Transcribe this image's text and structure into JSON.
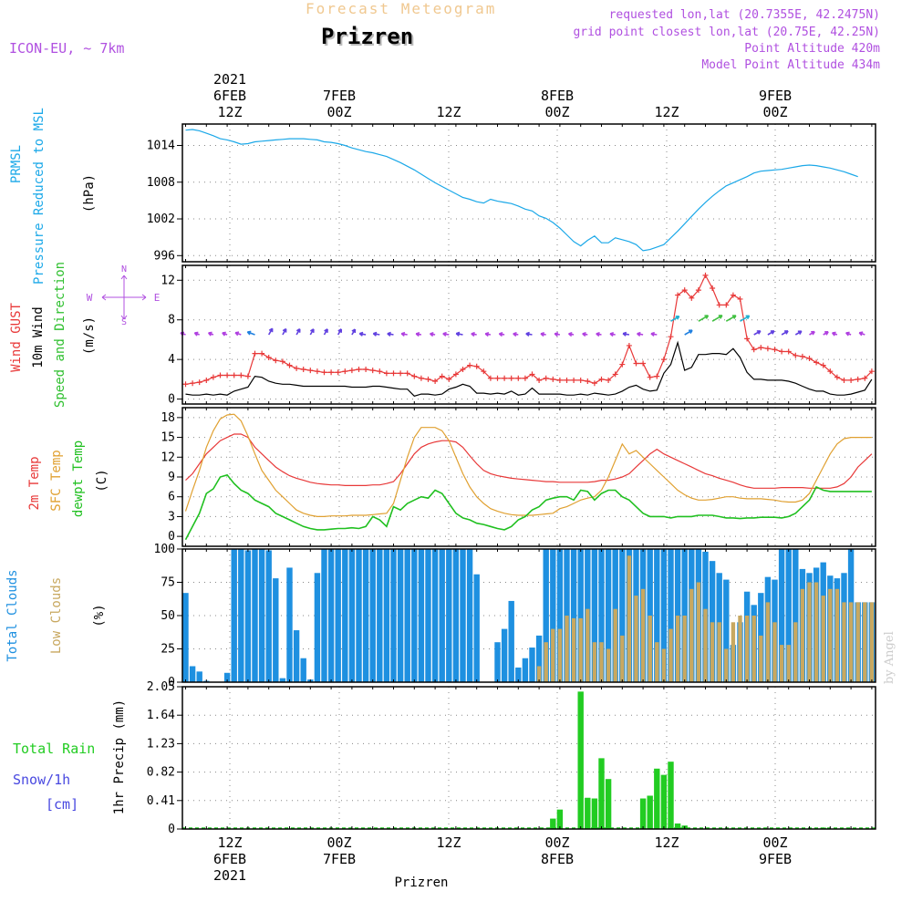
{
  "header": {
    "title": "Forecast Meteogram",
    "city": "Prizren",
    "model": "ICON-EU, ~ 7km",
    "requested": "requested lon,lat (20.7355E, 42.2475N)",
    "grid_point": "grid point closest lon,lat (20.75E, 42.25N)",
    "point_altitude": "Point Altitude 420m",
    "model_altitude": "Model Point Altitude 434m",
    "footer": "Prizren",
    "watermark": "by Angel"
  },
  "colors": {
    "pressure": "#1ba8e8",
    "gust": "#e83838",
    "wind": "#000000",
    "dir": "#30c030",
    "temp": "#e83838",
    "sfc": "#e0a030",
    "dewpt": "#20c020",
    "total_clouds": "#1e90e0",
    "low_clouds": "#c8a860",
    "rain": "#22cc22",
    "snow": "#4848e0",
    "purple": "#b050e0"
  },
  "chart_data": [
    {
      "type": "line",
      "name": "pressure",
      "title": "PRMSL Pressure Reduced to MSL",
      "ylabel": "(hPa)",
      "ylabel_lines": [
        "PRMSL",
        "Pressure Reduced to MSL"
      ],
      "yunit": "(hPa)",
      "ylim": [
        995,
        1017.5
      ],
      "yticks": [
        996,
        1002,
        1008,
        1014
      ],
      "series": [
        {
          "name": "PRMSL",
          "values": [
            1016.5,
            1016.6,
            1016.4,
            1016.0,
            1015.6,
            1015.1,
            1014.9,
            1014.6,
            1014.2,
            1014.3,
            1014.6,
            1014.7,
            1014.8,
            1014.9,
            1015.0,
            1015.1,
            1015.1,
            1015.1,
            1015.0,
            1014.9,
            1014.6,
            1014.5,
            1014.3,
            1014.0,
            1013.6,
            1013.3,
            1013.0,
            1012.8,
            1012.5,
            1012.2,
            1011.7,
            1011.2,
            1010.6,
            1010.0,
            1009.3,
            1008.6,
            1007.9,
            1007.3,
            1006.7,
            1006.1,
            1005.5,
            1005.2,
            1004.8,
            1004.6,
            1005.2,
            1004.9,
            1004.7,
            1004.5,
            1004.1,
            1003.6,
            1003.3,
            1002.5,
            1002.1,
            1001.4,
            1000.5,
            999.4,
            998.3,
            997.6,
            998.5,
            999.2,
            998.1,
            998.1,
            998.9,
            998.6,
            998.3,
            997.8,
            996.8,
            997.0,
            997.4,
            997.8,
            998.9,
            1000.0,
            1001.2,
            1002.4,
            1003.6,
            1004.7,
            1005.7,
            1006.6,
            1007.4,
            1007.9,
            1008.4,
            1008.9,
            1009.5,
            1009.8,
            1009.9,
            1010.0,
            1010.1,
            1010.3,
            1010.5,
            1010.7,
            1010.8,
            1010.7,
            1010.5,
            1010.3,
            1010.0,
            1009.7,
            1009.3,
            1008.9
          ]
        }
      ]
    },
    {
      "type": "line",
      "name": "wind",
      "title": "Wind GUST 10m Wind Speed and Direction",
      "ylabel": "(m/s)",
      "ylabel_lines": [
        "Wind GUST",
        "10m Wind",
        "Speed and Direction"
      ],
      "yunit": "(m/s)",
      "compass": {
        "n": "N",
        "s": "S",
        "e": "E",
        "w": "W"
      },
      "ylim": [
        -0.5,
        13.5
      ],
      "yticks": [
        0,
        4,
        8,
        12
      ],
      "series": [
        {
          "name": "Wind GUST",
          "values": [
            1.5,
            1.6,
            1.7,
            1.9,
            2.2,
            2.4,
            2.4,
            2.4,
            2.4,
            2.3,
            4.6,
            4.6,
            4.2,
            3.9,
            3.8,
            3.4,
            3.1,
            3.0,
            2.9,
            2.8,
            2.7,
            2.7,
            2.7,
            2.8,
            2.9,
            3.0,
            3.0,
            2.9,
            2.8,
            2.6,
            2.6,
            2.6,
            2.6,
            2.3,
            2.1,
            2.0,
            1.8,
            2.3,
            2.0,
            2.5,
            3.0,
            3.4,
            3.3,
            2.8,
            2.1,
            2.1,
            2.1,
            2.1,
            2.1,
            2.1,
            2.5,
            1.9,
            2.1,
            2.0,
            1.9,
            1.9,
            1.9,
            1.9,
            1.8,
            1.6,
            2.0,
            1.9,
            2.5,
            3.5,
            5.4,
            3.6,
            3.6,
            2.2,
            2.3,
            4.0,
            6.3,
            10.5,
            11.0,
            10.2,
            11.0,
            12.5,
            11.2,
            9.5,
            9.5,
            10.5,
            10.1,
            6.1,
            5.0,
            5.2,
            5.1,
            5.0,
            4.8,
            4.8,
            4.4,
            4.3,
            4.1,
            3.7,
            3.4,
            2.8,
            2.2,
            1.9,
            1.9,
            2.0,
            2.1,
            2.8
          ]
        },
        {
          "name": "10m Wind",
          "values": [
            0.5,
            0.4,
            0.4,
            0.5,
            0.4,
            0.5,
            0.4,
            0.8,
            1.0,
            1.2,
            2.3,
            2.2,
            1.8,
            1.6,
            1.5,
            1.5,
            1.4,
            1.3,
            1.3,
            1.3,
            1.3,
            1.3,
            1.3,
            1.3,
            1.2,
            1.2,
            1.2,
            1.3,
            1.3,
            1.2,
            1.1,
            1.0,
            1.0,
            0.3,
            0.5,
            0.5,
            0.4,
            0.5,
            1.0,
            1.2,
            1.5,
            1.3,
            0.6,
            0.6,
            0.5,
            0.6,
            0.5,
            0.8,
            0.4,
            0.5,
            1.1,
            0.5,
            0.5,
            0.5,
            0.5,
            0.4,
            0.4,
            0.5,
            0.4,
            0.6,
            0.5,
            0.4,
            0.5,
            0.8,
            1.2,
            1.4,
            1.0,
            0.8,
            0.9,
            2.6,
            3.5,
            5.7,
            2.9,
            3.2,
            4.5,
            4.5,
            4.6,
            4.6,
            4.5,
            5.1,
            4.2,
            2.7,
            2.0,
            2.0,
            1.9,
            1.9,
            1.9,
            1.8,
            1.6,
            1.3,
            1.0,
            0.8,
            0.8,
            0.5,
            0.4,
            0.4,
            0.5,
            0.7,
            0.9,
            2.0
          ]
        }
      ]
    },
    {
      "type": "line",
      "name": "temperature",
      "title": "2m Temp SFC Temp dewpt Temp",
      "ylabel": "(C)",
      "ylabel_lines": [
        "2m Temp",
        "SFC Temp",
        "dewpt Temp"
      ],
      "yunit": "(C)",
      "ylim": [
        -1.5,
        19.5
      ],
      "yticks": [
        0,
        3,
        6,
        9,
        12,
        15,
        18
      ],
      "series": [
        {
          "name": "2m Temp",
          "values": [
            8.5,
            9.5,
            11.0,
            12.5,
            13.5,
            14.5,
            15.0,
            15.5,
            15.5,
            15.0,
            13.5,
            12.5,
            11.5,
            10.5,
            9.8,
            9.2,
            8.8,
            8.5,
            8.2,
            8.0,
            7.9,
            7.8,
            7.8,
            7.7,
            7.7,
            7.7,
            7.7,
            7.8,
            7.8,
            8.0,
            8.3,
            9.5,
            11.0,
            12.5,
            13.5,
            14.0,
            14.3,
            14.5,
            14.5,
            14.3,
            13.5,
            12.2,
            11.0,
            10.0,
            9.5,
            9.2,
            9.0,
            8.8,
            8.7,
            8.6,
            8.5,
            8.4,
            8.3,
            8.3,
            8.2,
            8.2,
            8.2,
            8.2,
            8.2,
            8.3,
            8.5,
            8.5,
            8.7,
            9.0,
            9.5,
            10.5,
            11.5,
            12.5,
            13.2,
            12.5,
            12.0,
            11.5,
            11.0,
            10.5,
            10.0,
            9.5,
            9.2,
            8.8,
            8.5,
            8.2,
            7.8,
            7.5,
            7.3,
            7.3,
            7.3,
            7.3,
            7.4,
            7.4,
            7.4,
            7.4,
            7.3,
            7.3,
            7.3,
            7.3,
            7.5,
            8.0,
            9.0,
            10.5,
            11.5,
            12.5
          ]
        },
        {
          "name": "SFC Temp",
          "values": [
            3.8,
            7.0,
            10.0,
            13.5,
            16.0,
            17.8,
            18.4,
            18.5,
            17.5,
            15.2,
            12.5,
            10.0,
            8.5,
            7.0,
            6.0,
            5.0,
            4.0,
            3.5,
            3.2,
            3.0,
            3.0,
            3.1,
            3.1,
            3.1,
            3.2,
            3.2,
            3.2,
            3.3,
            3.4,
            3.5,
            5.0,
            8.5,
            12.0,
            15.0,
            16.5,
            16.5,
            16.5,
            16.0,
            14.5,
            12.0,
            9.5,
            7.5,
            6.0,
            5.0,
            4.2,
            3.8,
            3.5,
            3.3,
            3.2,
            3.2,
            3.2,
            3.3,
            3.4,
            3.5,
            4.2,
            4.5,
            5.0,
            5.5,
            5.8,
            6.0,
            7.0,
            9.0,
            11.5,
            14.0,
            12.5,
            13.0,
            12.0,
            11.0,
            10.0,
            9.0,
            8.0,
            7.0,
            6.3,
            5.8,
            5.5,
            5.5,
            5.6,
            5.8,
            6.0,
            6.0,
            5.8,
            5.7,
            5.7,
            5.7,
            5.6,
            5.5,
            5.3,
            5.2,
            5.2,
            5.5,
            6.5,
            8.5,
            10.5,
            12.5,
            14.0,
            14.8,
            15.0,
            15.0,
            15.0,
            15.0
          ]
        },
        {
          "name": "dewpt Temp",
          "values": [
            -0.5,
            1.5,
            3.5,
            6.5,
            7.2,
            9.0,
            9.3,
            8.0,
            7.0,
            6.5,
            5.5,
            5.0,
            4.5,
            3.5,
            3.0,
            2.5,
            2.0,
            1.5,
            1.2,
            1.0,
            1.0,
            1.1,
            1.2,
            1.2,
            1.3,
            1.2,
            1.5,
            3.0,
            2.5,
            1.5,
            4.5,
            4.0,
            5.0,
            5.5,
            6.0,
            5.8,
            7.0,
            6.5,
            5.0,
            3.5,
            2.8,
            2.5,
            2.0,
            1.8,
            1.5,
            1.2,
            1.0,
            1.5,
            2.5,
            3.0,
            4.0,
            4.5,
            5.5,
            5.8,
            6.0,
            6.0,
            5.5,
            7.0,
            6.8,
            5.5,
            6.5,
            7.0,
            7.0,
            6.0,
            5.5,
            4.5,
            3.5,
            3.0,
            3.0,
            3.0,
            2.8,
            3.0,
            3.0,
            3.0,
            3.2,
            3.2,
            3.2,
            3.0,
            2.8,
            2.8,
            2.7,
            2.8,
            2.8,
            2.9,
            2.9,
            2.9,
            2.8,
            3.0,
            3.5,
            4.5,
            5.5,
            7.5,
            7.0,
            6.8,
            6.8,
            6.8,
            6.8,
            6.8,
            6.8,
            6.8
          ]
        }
      ]
    },
    {
      "type": "bar",
      "name": "clouds",
      "title": "Total Clouds Low Clouds",
      "ylabel": "(%)",
      "ylabel_lines": [
        "Total Clouds",
        "Low Clouds"
      ],
      "yunit": "(%)",
      "ylim": [
        0,
        100
      ],
      "yticks": [
        0,
        25,
        50,
        75,
        100
      ],
      "series": [
        {
          "name": "Total Clouds",
          "values": [
            67,
            12,
            8,
            1,
            0,
            0,
            7,
            100,
            100,
            99,
            100,
            100,
            99,
            78,
            3,
            86,
            39,
            18,
            2,
            82,
            100,
            100,
            100,
            100,
            100,
            100,
            100,
            100,
            100,
            100,
            100,
            100,
            100,
            100,
            100,
            100,
            100,
            100,
            100,
            100,
            100,
            100,
            81,
            0,
            0,
            30,
            40,
            61,
            11,
            18,
            26,
            35,
            100,
            100,
            100,
            100,
            100,
            100,
            100,
            100,
            100,
            100,
            100,
            100,
            100,
            100,
            100,
            100,
            100,
            100,
            100,
            100,
            100,
            100,
            100,
            98,
            91,
            82,
            77,
            28,
            45,
            68,
            58,
            67,
            79,
            77,
            100,
            100,
            100,
            85,
            82,
            86,
            90,
            80,
            78,
            82,
            100,
            60,
            60,
            60
          ]
        },
        {
          "name": "Low Clouds",
          "values": [
            0,
            0,
            0,
            0,
            0,
            0,
            0,
            0,
            0,
            0,
            0,
            0,
            0,
            0,
            0,
            0,
            0,
            0,
            0,
            0,
            0,
            0,
            0,
            0,
            0,
            0,
            0,
            0,
            0,
            0,
            0,
            0,
            0,
            0,
            0,
            0,
            0,
            0,
            0,
            0,
            0,
            0,
            0,
            0,
            0,
            0,
            0,
            0,
            0,
            0,
            0,
            12,
            30,
            40,
            40,
            50,
            48,
            48,
            55,
            30,
            30,
            25,
            55,
            35,
            95,
            65,
            70,
            50,
            30,
            25,
            40,
            50,
            50,
            70,
            75,
            55,
            45,
            45,
            25,
            45,
            50,
            50,
            50,
            35,
            60,
            45,
            28,
            28,
            45,
            70,
            75,
            75,
            65,
            70,
            70,
            60,
            60,
            60,
            60,
            60
          ]
        }
      ]
    },
    {
      "type": "bar",
      "name": "precip",
      "title": "Total Rain Snow/1h [cm]",
      "ylabel": "1hr Precip (mm)",
      "legend_lines": [
        "Total  Rain",
        "Snow/1h",
        "[cm]"
      ],
      "ylim": [
        0,
        2.05
      ],
      "yticks": [
        "0",
        "0.41",
        "0.82",
        "1.23",
        "1.64",
        "2.05"
      ],
      "series": [
        {
          "name": "Total Rain",
          "values": [
            0,
            0,
            0,
            0,
            0,
            0,
            0,
            0,
            0,
            0,
            0,
            0,
            0,
            0,
            0,
            0,
            0,
            0,
            0,
            0,
            0,
            0,
            0,
            0,
            0,
            0,
            0,
            0,
            0,
            0,
            0,
            0,
            0,
            0,
            0,
            0,
            0,
            0,
            0,
            0,
            0,
            0,
            0,
            0,
            0,
            0,
            0,
            0,
            0,
            0,
            0,
            0,
            0,
            0.15,
            0.28,
            0,
            0,
            1.98,
            0.45,
            0.44,
            1.02,
            0.72,
            0,
            0,
            0,
            0,
            0.44,
            0.48,
            0.87,
            0.78,
            0.97,
            0.08,
            0.05,
            0,
            0,
            0,
            0,
            0,
            0,
            0,
            0,
            0,
            0,
            0,
            0,
            0,
            0,
            0,
            0,
            0,
            0,
            0,
            0.02,
            0,
            0,
            0,
            0,
            0,
            0,
            0
          ]
        },
        {
          "name": "Snow/1h",
          "values": []
        }
      ]
    }
  ],
  "time_axis": {
    "top_labels": [
      {
        "l1": "2021",
        "l2": "6FEB",
        "l3": "12Z"
      },
      {
        "l1": "",
        "l2": "7FEB",
        "l3": "00Z"
      },
      {
        "l1": "",
        "l2": "",
        "l3": "12Z"
      },
      {
        "l1": "",
        "l2": "8FEB",
        "l3": "00Z"
      },
      {
        "l1": "",
        "l2": "",
        "l3": "12Z"
      },
      {
        "l1": "",
        "l2": "9FEB",
        "l3": "00Z"
      }
    ],
    "bottom_labels": [
      {
        "l1": "12Z",
        "l2": "6FEB",
        "l3": "2021"
      },
      {
        "l1": "00Z",
        "l2": "7FEB",
        "l3": ""
      },
      {
        "l1": "12Z",
        "l2": "",
        "l3": ""
      },
      {
        "l1": "00Z",
        "l2": "8FEB",
        "l3": ""
      },
      {
        "l1": "12Z",
        "l2": "",
        "l3": ""
      },
      {
        "l1": "00Z",
        "l2": "9FEB",
        "l3": ""
      }
    ]
  }
}
